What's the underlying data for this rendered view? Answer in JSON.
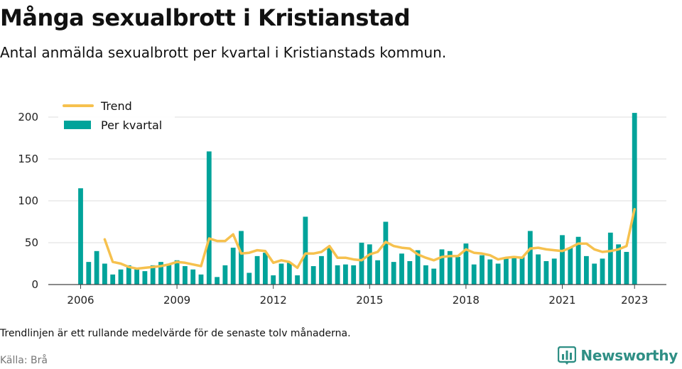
{
  "header": {
    "title": "Många sexualbrott i Kristianstad",
    "subtitle": "Antal anmälda sexualbrott per kvartal i Kristianstads kommun."
  },
  "footer": {
    "note": "Trendlinjen är ett rullande medelvärde för de senaste tolv månaderna.",
    "source": "Källa: Brå",
    "brand": "Newsworthy",
    "brand_icon": "bar-chart-logo-icon",
    "brand_color": "#2f8f85"
  },
  "chart_data": {
    "type": "bar",
    "ylim": [
      0,
      210
    ],
    "yticks": [
      0,
      50,
      100,
      150,
      200
    ],
    "xticks": [
      {
        "label": "2006",
        "index": 0
      },
      {
        "label": "2009",
        "index": 12
      },
      {
        "label": "2012",
        "index": 24
      },
      {
        "label": "2015",
        "index": 36
      },
      {
        "label": "2018",
        "index": 48
      },
      {
        "label": "2021",
        "index": 60
      },
      {
        "label": "2023",
        "index": 69
      }
    ],
    "grid": true,
    "legend_position": "top-left",
    "colors": {
      "bars": "#00a39a",
      "trend": "#f6c14e",
      "grid": "#dddddd",
      "axis": "#444444"
    },
    "series": [
      {
        "name": "Per kvartal",
        "type": "bar",
        "values": [
          115,
          27,
          40,
          25,
          12,
          18,
          23,
          19,
          16,
          23,
          27,
          25,
          29,
          22,
          18,
          12,
          159,
          9,
          23,
          44,
          64,
          14,
          34,
          38,
          11,
          25,
          26,
          11,
          81,
          22,
          34,
          44,
          23,
          24,
          23,
          50,
          48,
          29,
          75,
          27,
          37,
          28,
          41,
          23,
          19,
          42,
          40,
          33,
          49,
          24,
          35,
          30,
          25,
          32,
          34,
          33,
          64,
          36,
          28,
          31,
          59,
          44,
          57,
          34,
          25,
          31,
          62,
          48,
          39,
          205
        ]
      },
      {
        "name": "Trend",
        "type": "line",
        "values": [
          null,
          null,
          null,
          54,
          27,
          25,
          21,
          19,
          20,
          21,
          22,
          24,
          27,
          26,
          24,
          22,
          55,
          52,
          52,
          60,
          37,
          38,
          41,
          40,
          26,
          29,
          27,
          20,
          37,
          37,
          39,
          46,
          32,
          32,
          30,
          29,
          36,
          39,
          51,
          46,
          44,
          43,
          36,
          32,
          29,
          33,
          34,
          34,
          42,
          38,
          37,
          35,
          30,
          32,
          33,
          32,
          43,
          44,
          42,
          41,
          40,
          44,
          49,
          49,
          42,
          39,
          40,
          42,
          46,
          90
        ]
      }
    ]
  }
}
